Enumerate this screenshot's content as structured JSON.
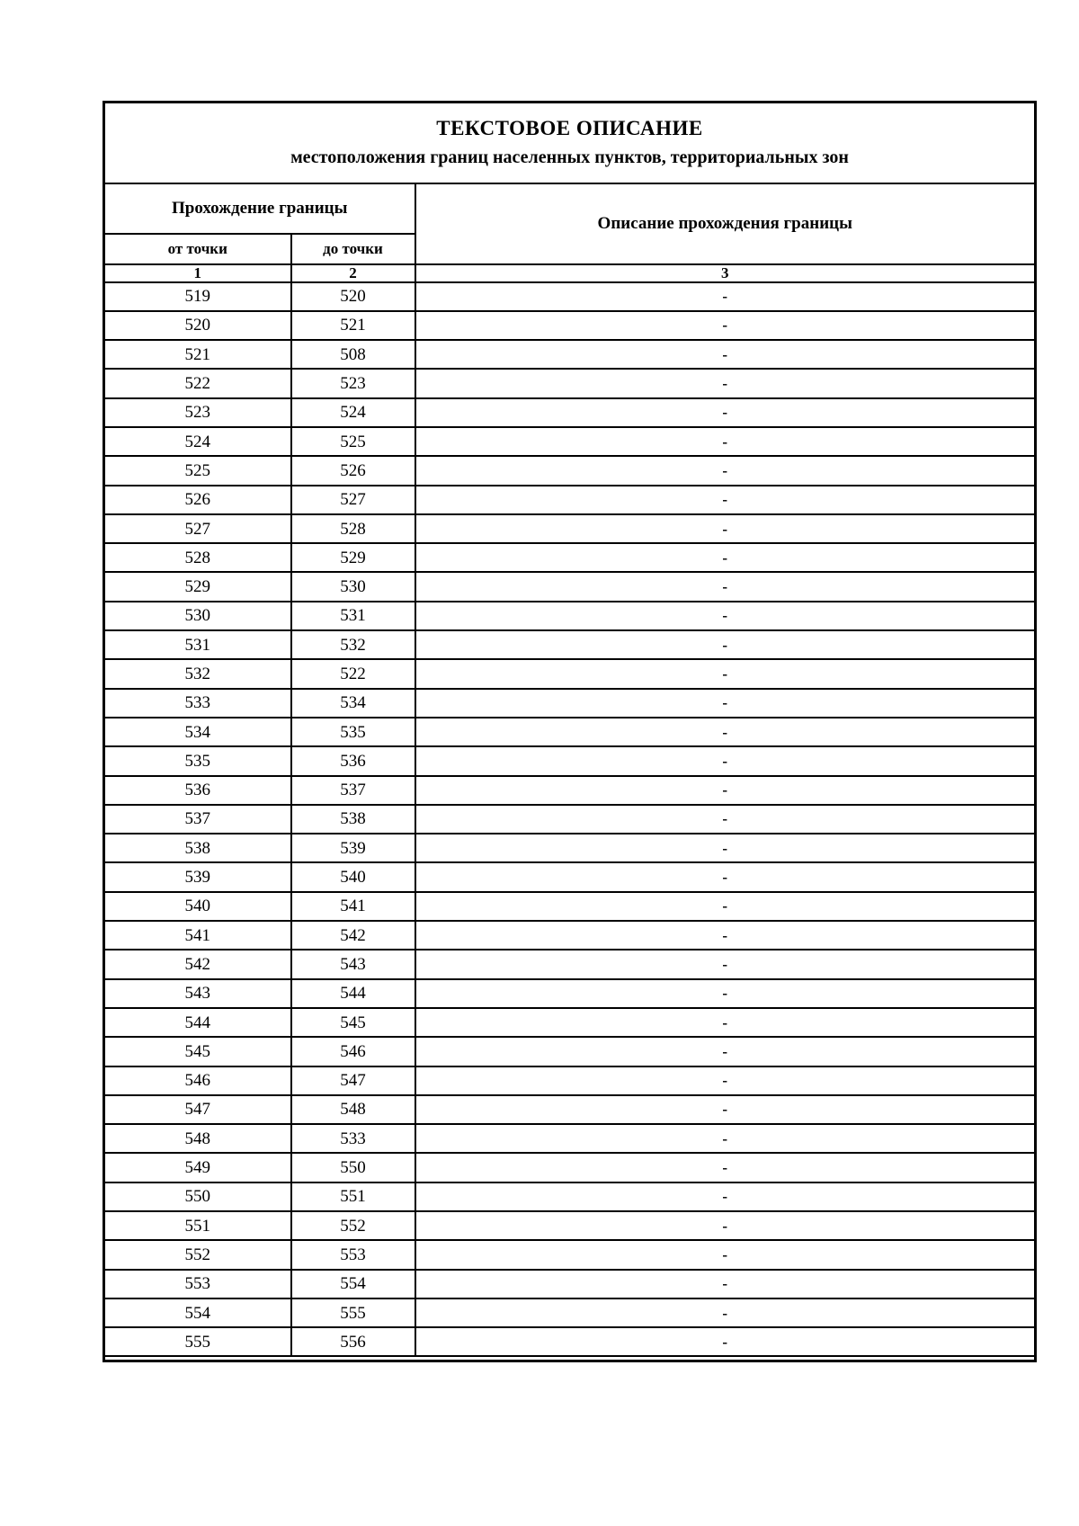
{
  "page": {
    "background": "#ffffff",
    "text_color": "#000000",
    "border_color": "#000000"
  },
  "document": {
    "title_line1": "ТЕКСТОВОЕ ОПИСАНИЕ",
    "title_line2": "местоположения границ населенных пунктов, территориальных зон"
  },
  "table": {
    "header": {
      "group_label": "Прохождение границы",
      "from_label": "от точки",
      "to_label": "до точки",
      "description_label": "Описание прохождения границы",
      "col_numbers": [
        "1",
        "2",
        "3"
      ]
    },
    "rows": [
      {
        "from": "519",
        "to": "520",
        "description": "-"
      },
      {
        "from": "520",
        "to": "521",
        "description": "-"
      },
      {
        "from": "521",
        "to": "508",
        "description": "-"
      },
      {
        "from": "522",
        "to": "523",
        "description": "-"
      },
      {
        "from": "523",
        "to": "524",
        "description": "-"
      },
      {
        "from": "524",
        "to": "525",
        "description": "-"
      },
      {
        "from": "525",
        "to": "526",
        "description": "-"
      },
      {
        "from": "526",
        "to": "527",
        "description": "-"
      },
      {
        "from": "527",
        "to": "528",
        "description": "-"
      },
      {
        "from": "528",
        "to": "529",
        "description": "-"
      },
      {
        "from": "529",
        "to": "530",
        "description": "-"
      },
      {
        "from": "530",
        "to": "531",
        "description": "-"
      },
      {
        "from": "531",
        "to": "532",
        "description": "-"
      },
      {
        "from": "532",
        "to": "522",
        "description": "-"
      },
      {
        "from": "533",
        "to": "534",
        "description": "-"
      },
      {
        "from": "534",
        "to": "535",
        "description": "-"
      },
      {
        "from": "535",
        "to": "536",
        "description": "-"
      },
      {
        "from": "536",
        "to": "537",
        "description": "-"
      },
      {
        "from": "537",
        "to": "538",
        "description": "-"
      },
      {
        "from": "538",
        "to": "539",
        "description": "-"
      },
      {
        "from": "539",
        "to": "540",
        "description": "-"
      },
      {
        "from": "540",
        "to": "541",
        "description": "-"
      },
      {
        "from": "541",
        "to": "542",
        "description": "-"
      },
      {
        "from": "542",
        "to": "543",
        "description": "-"
      },
      {
        "from": "543",
        "to": "544",
        "description": "-"
      },
      {
        "from": "544",
        "to": "545",
        "description": "-"
      },
      {
        "from": "545",
        "to": "546",
        "description": "-"
      },
      {
        "from": "546",
        "to": "547",
        "description": "-"
      },
      {
        "from": "547",
        "to": "548",
        "description": "-"
      },
      {
        "from": "548",
        "to": "533",
        "description": "-"
      },
      {
        "from": "549",
        "to": "550",
        "description": "-"
      },
      {
        "from": "550",
        "to": "551",
        "description": "-"
      },
      {
        "from": "551",
        "to": "552",
        "description": "-"
      },
      {
        "from": "552",
        "to": "553",
        "description": "-"
      },
      {
        "from": "553",
        "to": "554",
        "description": "-"
      },
      {
        "from": "554",
        "to": "555",
        "description": "-"
      },
      {
        "from": "555",
        "to": "556",
        "description": "-"
      }
    ]
  }
}
